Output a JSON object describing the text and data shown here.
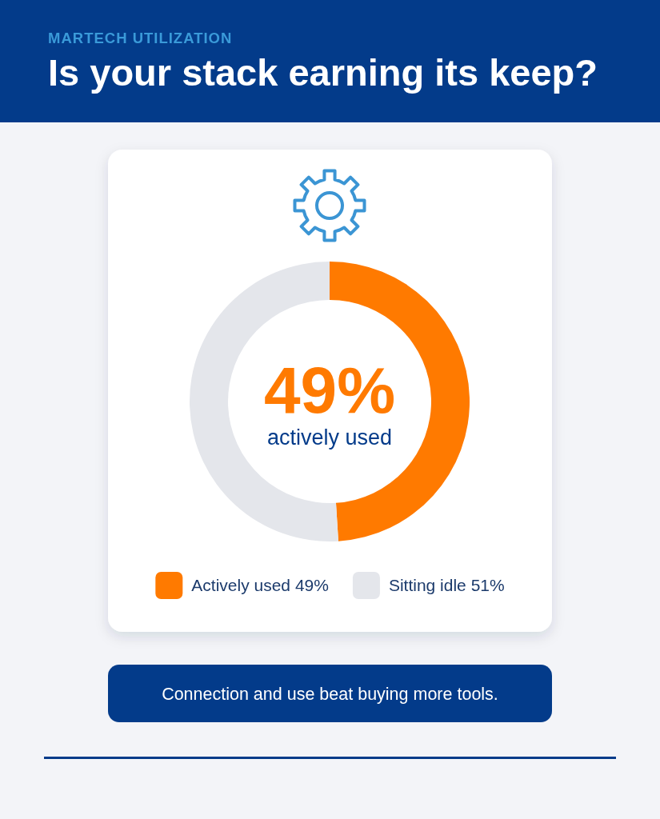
{
  "chart_data": {
    "type": "donut",
    "subtitle": "MARTECH UTILIZATION",
    "title": "Is your stack earning its keep?",
    "categories": [
      "Actively used 49%",
      "Sitting idle 51%"
    ],
    "values": [
      49,
      51
    ],
    "colors": [
      "#ff7a00",
      "#e4e6eb"
    ],
    "value_labels": [
      "49%",
      null
    ],
    "legend": "bottom",
    "annotations": [
      "actively used",
      "Connection and use beat buying more tools."
    ]
  }
}
